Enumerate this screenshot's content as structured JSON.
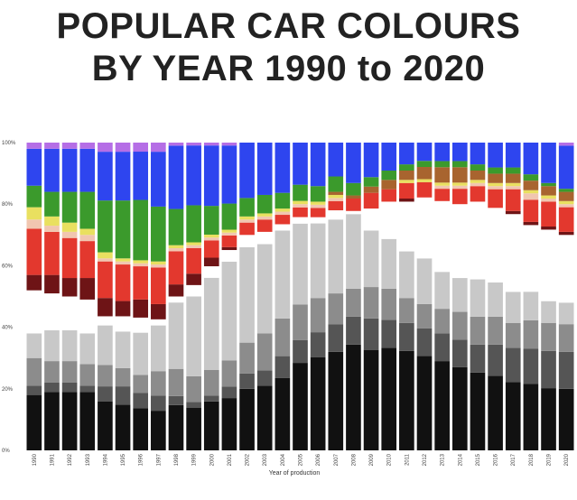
{
  "title_line1": "POPULAR CAR COLOURS",
  "title_line2": "BY YEAR 1990 to 2020",
  "chart_data": {
    "type": "bar",
    "stacked": true,
    "normalized": true,
    "title": "POPULAR CAR COLOURS BY YEAR 1990 to 2020",
    "xlabel": "Year of production",
    "ylabel": "",
    "ylim": [
      0,
      100
    ],
    "y_ticks": [
      "0%",
      "20%",
      "40%",
      "60%",
      "80%",
      "100%"
    ],
    "y_tick_values": [
      0,
      20,
      40,
      60,
      80,
      100
    ],
    "grid": false,
    "legend": "none",
    "categories": [
      "1990",
      "1991",
      "1992",
      "1993",
      "1994",
      "1995",
      "1996",
      "1997",
      "1998",
      "1999",
      "2000",
      "2001",
      "2002",
      "2003",
      "2004",
      "2005",
      "2006",
      "2007",
      "2008",
      "2009",
      "2010",
      "2011",
      "2012",
      "2013",
      "2014",
      "2015",
      "2016",
      "2017",
      "2018",
      "2019",
      "2020"
    ],
    "series": [
      {
        "color": "#111111",
        "values": [
          18,
          19,
          19,
          19,
          16,
          15,
          14,
          13,
          15,
          15,
          17,
          18,
          20,
          21,
          23,
          27,
          30,
          32,
          34,
          32,
          33,
          32,
          31,
          29,
          27,
          25,
          24,
          22,
          21,
          20,
          20
        ]
      },
      {
        "color": "#555555",
        "values": [
          3,
          3,
          3,
          2,
          5,
          6,
          5,
          5,
          3,
          2,
          2,
          4,
          5,
          5,
          7,
          7,
          8,
          9,
          9,
          10,
          9,
          9,
          9,
          9,
          9,
          9,
          10,
          11,
          11,
          12,
          12
        ]
      },
      {
        "color": "#8c8c8c",
        "values": [
          9,
          7,
          7,
          7,
          7,
          6,
          6,
          8,
          9,
          9,
          9,
          9,
          10,
          12,
          12,
          11,
          11,
          10,
          9,
          10,
          10,
          8,
          8,
          8,
          9,
          9,
          9,
          8,
          9,
          9,
          9
        ]
      },
      {
        "color": "#c8c8c8",
        "values": [
          8,
          10,
          10,
          10,
          13,
          12,
          14,
          15,
          22,
          28,
          32,
          34,
          31,
          29,
          28,
          25,
          24,
          24,
          24,
          18,
          16,
          15,
          15,
          12,
          11,
          12,
          11,
          10,
          9,
          7,
          7
        ]
      },
      {
        "color": "#ffffff",
        "values": [
          14,
          12,
          11,
          11,
          3,
          5,
          5,
          2,
          2,
          4,
          4,
          4,
          4,
          4,
          2,
          2,
          2,
          3,
          1,
          7,
          12,
          16,
          20,
          23,
          24,
          25,
          24,
          25,
          21,
          23,
          22
        ]
      },
      {
        "color": "#6e1416",
        "values": [
          5,
          6,
          6,
          7,
          6,
          5,
          6,
          5,
          4,
          4,
          3,
          1,
          0,
          0,
          0,
          0,
          0,
          0,
          0,
          0,
          0,
          1,
          0,
          0,
          0,
          0,
          0,
          1,
          1,
          1,
          1
        ]
      },
      {
        "color": "#e3382e",
        "values": [
          15,
          14,
          13,
          12,
          12,
          12,
          11,
          12,
          11,
          9,
          6,
          4,
          4,
          4,
          3,
          3,
          3,
          3,
          4,
          5,
          4,
          5,
          5,
          4,
          5,
          5,
          6,
          7,
          7,
          8,
          8
        ]
      },
      {
        "color": "#f1c6b0",
        "values": [
          3,
          2,
          2,
          2,
          1,
          1,
          1,
          1,
          1,
          1,
          1,
          1,
          1,
          1,
          1,
          1,
          1,
          1,
          0,
          0,
          0,
          0,
          0,
          1,
          1,
          1,
          1,
          1,
          2,
          1,
          1
        ]
      },
      {
        "color": "#e9e060",
        "values": [
          4,
          3,
          3,
          2,
          2,
          1,
          1,
          1,
          1,
          1,
          1,
          1,
          1,
          1,
          1,
          1,
          1,
          1,
          0,
          0,
          0,
          1,
          1,
          1,
          1,
          1,
          1,
          1,
          1,
          1,
          1
        ]
      },
      {
        "color": "#a8642f",
        "values": [
          0,
          0,
          0,
          0,
          0,
          0,
          0,
          0,
          0,
          0,
          0,
          0,
          0,
          0,
          0,
          0,
          0,
          1,
          1,
          2,
          3,
          3,
          4,
          5,
          5,
          3,
          3,
          3,
          3,
          3,
          3
        ]
      },
      {
        "color": "#3b9a2c",
        "values": [
          7,
          8,
          10,
          12,
          17,
          19,
          20,
          18,
          12,
          13,
          10,
          9,
          6,
          6,
          5,
          5,
          5,
          5,
          4,
          3,
          3,
          2,
          2,
          2,
          2,
          2,
          2,
          2,
          2,
          1,
          1
        ]
      },
      {
        "color": "#2e45ef",
        "values": [
          12,
          14,
          14,
          14,
          16,
          16,
          16,
          18,
          21,
          21,
          21,
          20,
          18,
          17,
          16,
          13,
          14,
          11,
          13,
          11,
          9,
          7,
          6,
          6,
          6,
          7,
          8,
          8,
          10,
          13,
          14
        ]
      },
      {
        "color": "#b56ee6",
        "values": [
          2,
          2,
          2,
          2,
          3,
          3,
          3,
          3,
          1,
          1,
          1,
          1,
          0,
          0,
          0,
          0,
          0,
          0,
          0,
          0,
          0,
          0,
          0,
          0,
          0,
          0,
          0,
          0,
          0,
          0,
          1
        ]
      }
    ]
  }
}
